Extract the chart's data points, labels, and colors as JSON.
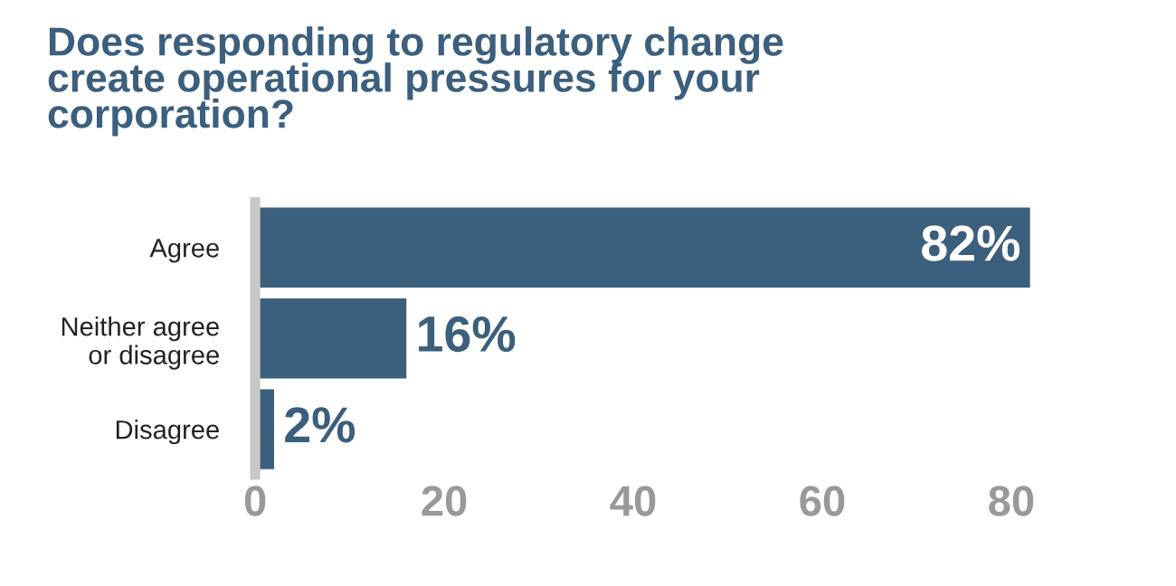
{
  "chart_data": {
    "type": "bar",
    "orientation": "horizontal",
    "title": "Does responding to regulatory change\ncreate operational pressures for your\ncorporation?",
    "categories": [
      "Agree",
      "Neither agree\nor disagree",
      "Disagree"
    ],
    "values": [
      82,
      16,
      2
    ],
    "value_labels": [
      "82%",
      "16%",
      "2%"
    ],
    "color": "#3b5f7d",
    "xlim": [
      0,
      82
    ],
    "xticks": [
      0,
      20,
      40,
      60,
      80
    ],
    "grid": false,
    "legend": false
  }
}
